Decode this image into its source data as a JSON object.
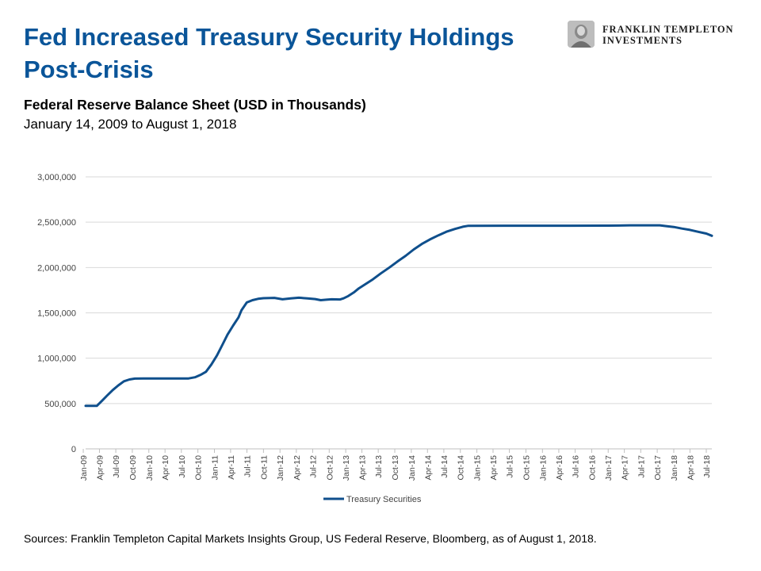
{
  "title": "Fed Increased Treasury Security Holdings Post-Crisis",
  "logo": {
    "line1": "FRANKLIN TEMPLETON",
    "line2": "INVESTMENTS"
  },
  "source": "Sources: Franklin Templeton Capital Markets Insights Group, US Federal Reserve, Bloomberg, as of August 1, 2018.",
  "colors": {
    "title": "#0a5599",
    "series": "#0f4f8c",
    "grid": "#d9d9d9"
  },
  "chart_data": {
    "type": "line",
    "title": "Federal Reserve Balance Sheet (USD in Thousands)",
    "subtitle": "January 14, 2009 to August 1, 2018",
    "ylim": [
      0,
      3000000
    ],
    "yticks": [
      0,
      500000,
      1000000,
      1500000,
      2000000,
      2500000,
      3000000
    ],
    "ytick_labels": [
      "0",
      "500,000",
      "1,000,000",
      "1,500,000",
      "2,000,000",
      "2,500,000",
      "3,000,000"
    ],
    "x_start": "2009-01-14",
    "x_end": "2018-08-01",
    "xtick_labels": [
      "Jan-09",
      "Apr-09",
      "Jul-09",
      "Oct-09",
      "Jan-10",
      "Apr-10",
      "Jul-10",
      "Oct-10",
      "Jan-11",
      "Apr-11",
      "Jul-11",
      "Oct-11",
      "Jan-12",
      "Apr-12",
      "Jul-12",
      "Oct-12",
      "Jan-13",
      "Apr-13",
      "Jul-13",
      "Oct-13",
      "Jan-14",
      "Apr-14",
      "Jul-14",
      "Oct-14",
      "Jan-15",
      "Apr-15",
      "Jul-15",
      "Oct-15",
      "Jan-16",
      "Apr-16",
      "Jul-16",
      "Oct-16",
      "Jan-17",
      "Apr-17",
      "Jul-17",
      "Oct-17",
      "Jan-18",
      "Apr-18",
      "Jul-18"
    ],
    "grid": true,
    "legend_position": "bottom",
    "series": [
      {
        "name": "Treasury Securities",
        "points": [
          [
            "2009-01-14",
            475000
          ],
          [
            "2009-03-18",
            475000
          ],
          [
            "2009-04-15",
            530000
          ],
          [
            "2009-05-15",
            590000
          ],
          [
            "2009-06-15",
            650000
          ],
          [
            "2009-07-15",
            700000
          ],
          [
            "2009-08-15",
            745000
          ],
          [
            "2009-09-15",
            765000
          ],
          [
            "2009-10-15",
            775000
          ],
          [
            "2009-12-01",
            777000
          ],
          [
            "2010-03-01",
            777000
          ],
          [
            "2010-06-01",
            777000
          ],
          [
            "2010-08-10",
            777000
          ],
          [
            "2010-09-15",
            790000
          ],
          [
            "2010-10-15",
            815000
          ],
          [
            "2010-11-15",
            850000
          ],
          [
            "2010-12-15",
            930000
          ],
          [
            "2011-01-15",
            1030000
          ],
          [
            "2011-02-15",
            1150000
          ],
          [
            "2011-03-15",
            1260000
          ],
          [
            "2011-04-15",
            1360000
          ],
          [
            "2011-05-15",
            1450000
          ],
          [
            "2011-06-01",
            1530000
          ],
          [
            "2011-06-30",
            1615000
          ],
          [
            "2011-08-01",
            1640000
          ],
          [
            "2011-09-01",
            1655000
          ],
          [
            "2011-10-01",
            1662000
          ],
          [
            "2011-12-01",
            1665000
          ],
          [
            "2012-01-15",
            1650000
          ],
          [
            "2012-03-01",
            1660000
          ],
          [
            "2012-04-15",
            1667000
          ],
          [
            "2012-06-01",
            1660000
          ],
          [
            "2012-07-15",
            1652000
          ],
          [
            "2012-08-15",
            1640000
          ],
          [
            "2012-09-15",
            1645000
          ],
          [
            "2012-10-15",
            1650000
          ],
          [
            "2012-12-01",
            1648000
          ],
          [
            "2012-12-20",
            1660000
          ],
          [
            "2013-01-15",
            1685000
          ],
          [
            "2013-02-15",
            1725000
          ],
          [
            "2013-03-15",
            1770000
          ],
          [
            "2013-04-15",
            1810000
          ],
          [
            "2013-06-01",
            1870000
          ],
          [
            "2013-07-15",
            1935000
          ],
          [
            "2013-09-01",
            2000000
          ],
          [
            "2013-10-15",
            2065000
          ],
          [
            "2013-12-01",
            2130000
          ],
          [
            "2014-01-15",
            2200000
          ],
          [
            "2014-03-01",
            2260000
          ],
          [
            "2014-04-15",
            2310000
          ],
          [
            "2014-06-01",
            2355000
          ],
          [
            "2014-07-15",
            2395000
          ],
          [
            "2014-09-01",
            2425000
          ],
          [
            "2014-10-15",
            2450000
          ],
          [
            "2014-11-15",
            2460000
          ],
          [
            "2015-06-01",
            2461000
          ],
          [
            "2016-01-01",
            2461000
          ],
          [
            "2016-06-01",
            2461000
          ],
          [
            "2017-01-01",
            2462000
          ],
          [
            "2017-03-01",
            2463000
          ],
          [
            "2017-05-01",
            2466000
          ],
          [
            "2017-10-15",
            2466000
          ],
          [
            "2017-11-15",
            2458000
          ],
          [
            "2018-01-01",
            2447000
          ],
          [
            "2018-02-15",
            2430000
          ],
          [
            "2018-04-01",
            2415000
          ],
          [
            "2018-05-15",
            2395000
          ],
          [
            "2018-07-01",
            2375000
          ],
          [
            "2018-08-01",
            2350000
          ]
        ]
      }
    ]
  }
}
